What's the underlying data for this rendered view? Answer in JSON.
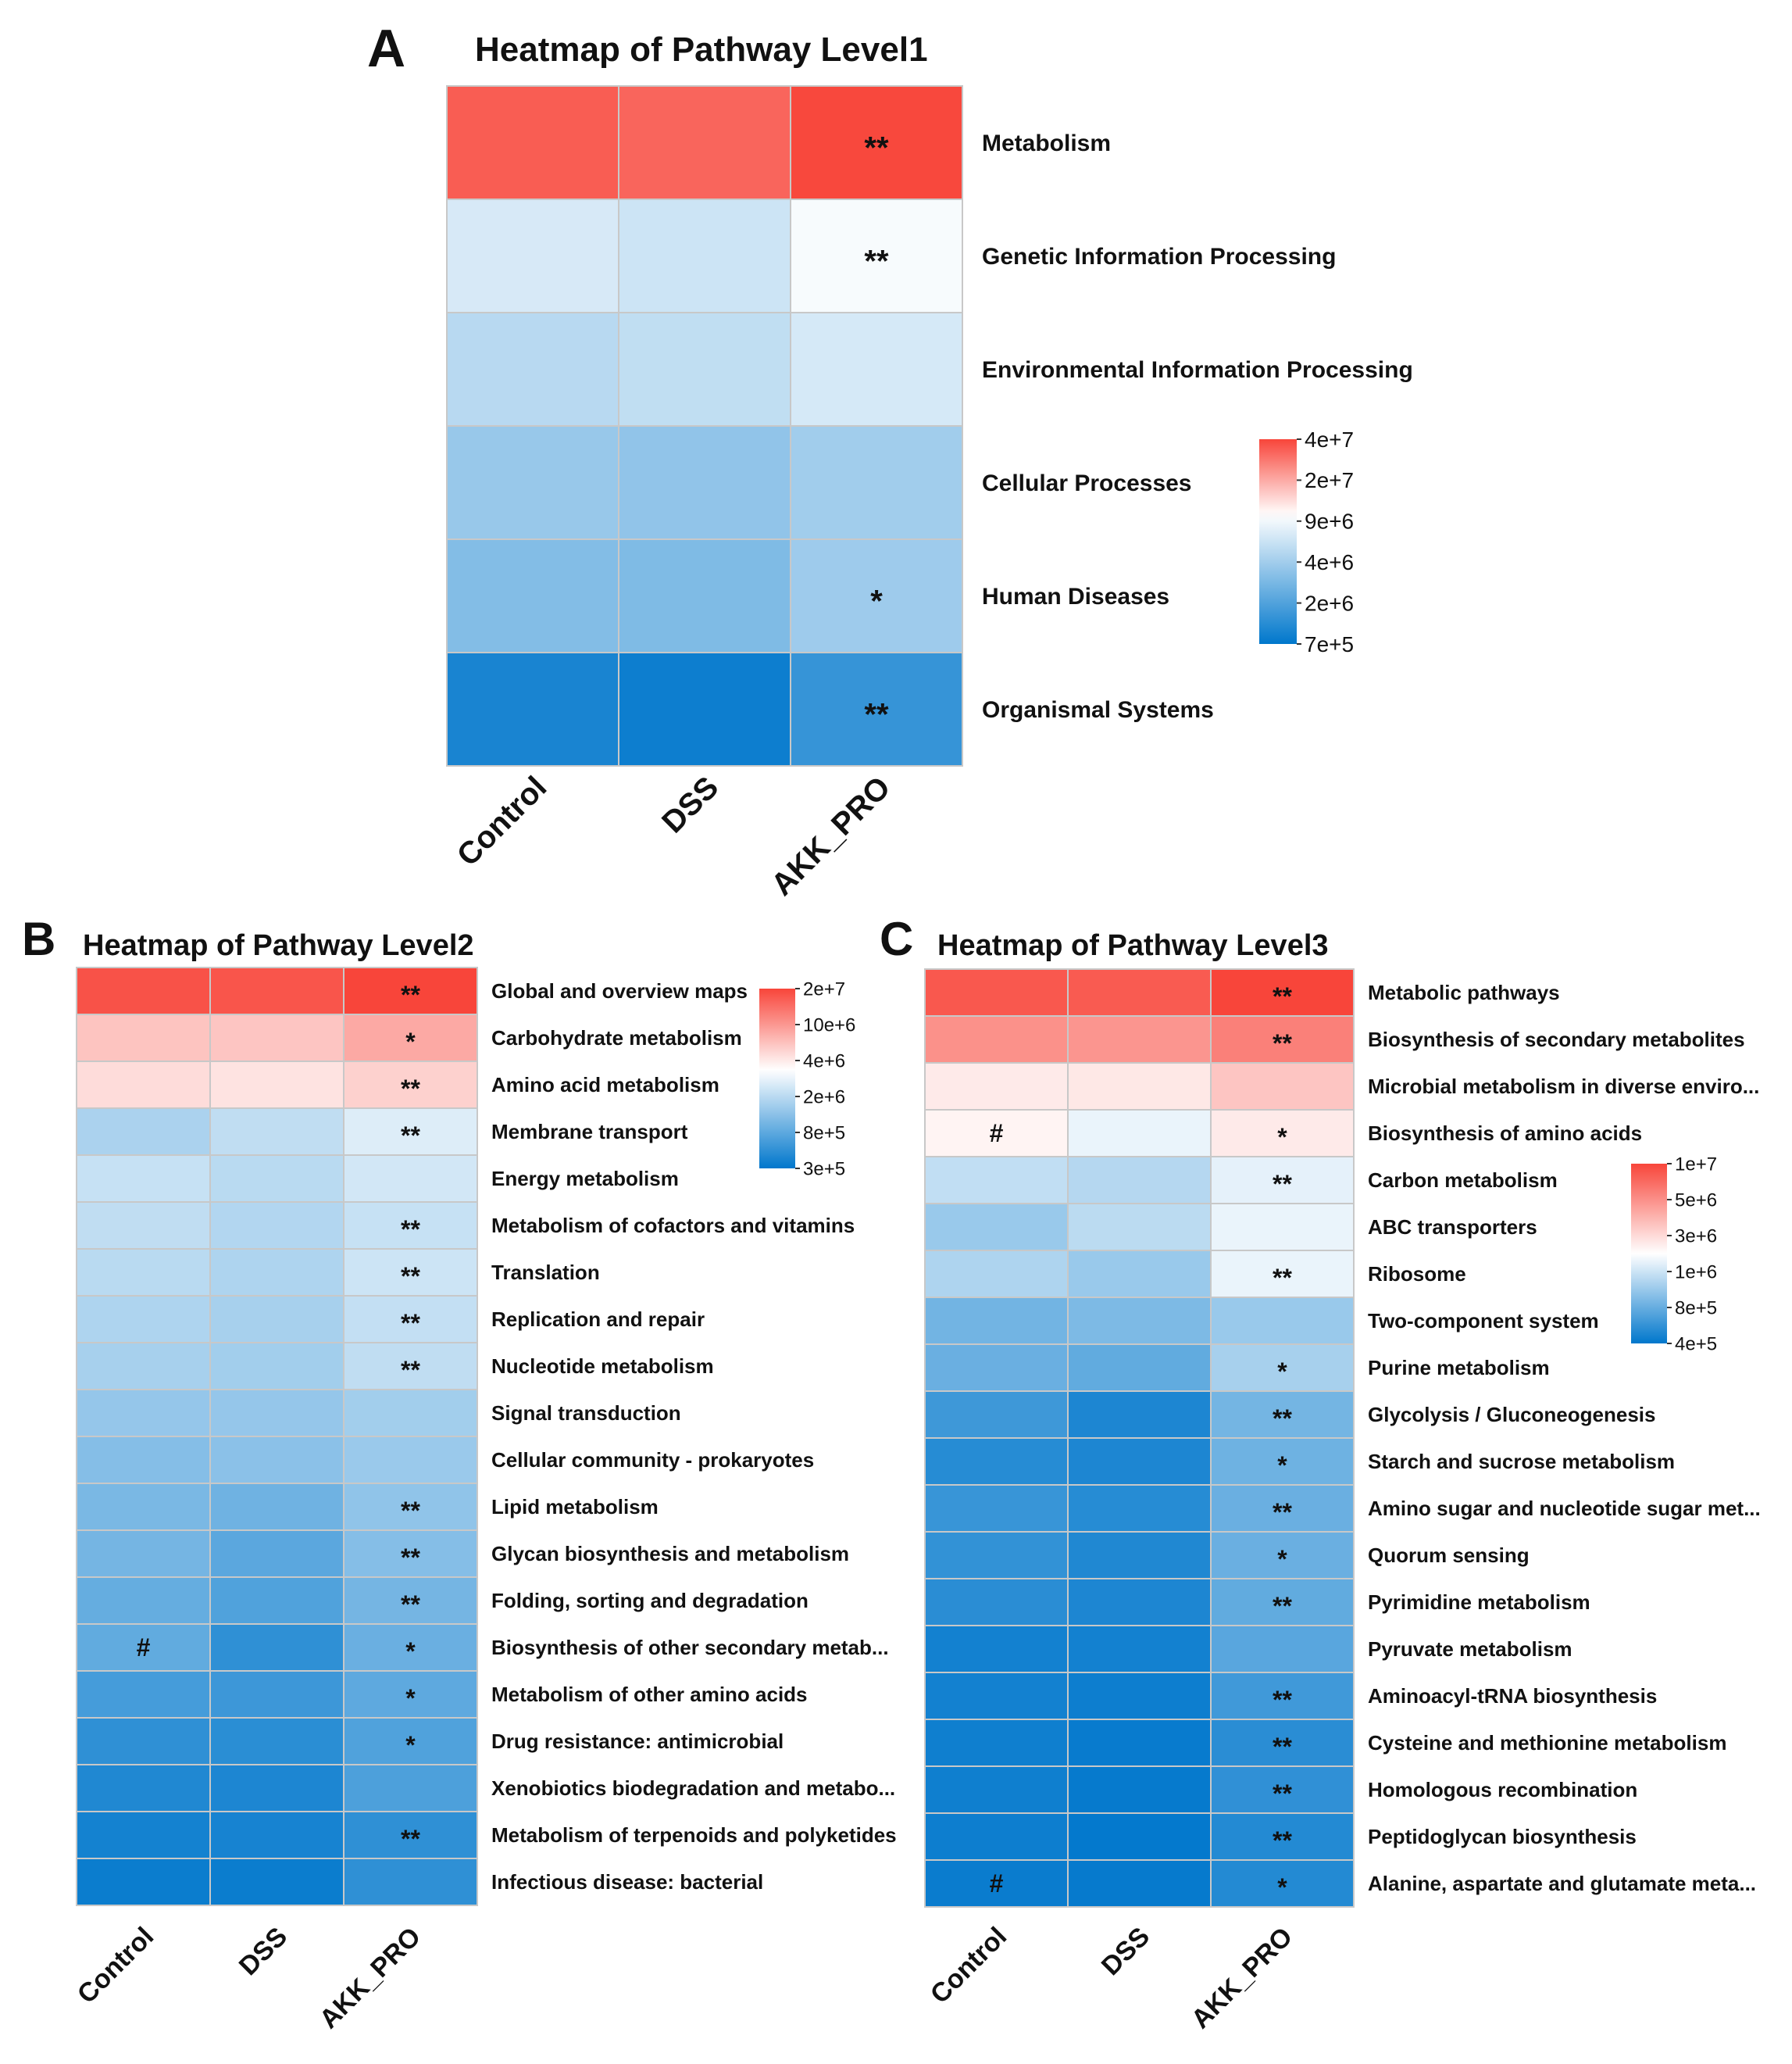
{
  "colors": {
    "high": "#f8453a",
    "mid": "#ffffff",
    "low": "#0077cc",
    "grid": "#c8c8c8"
  },
  "chart_data": [
    {
      "panel": "A",
      "type": "heatmap",
      "title": "Heatmap of Pathway Level1",
      "columns": [
        "Control",
        "DSS",
        "AKK_PRO"
      ],
      "rows": [
        "Metabolism",
        "Genetic Information Processing",
        "Environmental Information Processing",
        "Cellular Processes",
        "Human Diseases",
        "Organismal Systems"
      ],
      "values": [
        [
          33000000.0,
          31000000.0,
          39000000.0
        ],
        [
          6000000.0,
          5400000.0,
          8300000.0
        ],
        [
          4400000.0,
          4800000.0,
          5900000.0
        ],
        [
          3200000.0,
          3000000.0,
          3500000.0
        ],
        [
          2600000.0,
          2500000.0,
          3400000.0
        ],
        [
          900000.0,
          800000.0,
          1200000.0
        ]
      ],
      "marks": [
        [
          "",
          "",
          "**"
        ],
        [
          "",
          "",
          "**"
        ],
        [
          "",
          "",
          ""
        ],
        [
          "",
          "",
          ""
        ],
        [
          "",
          "",
          "*"
        ],
        [
          "",
          "",
          "**"
        ]
      ],
      "legend": {
        "ticks": [
          "4e+7",
          "2e+7",
          "9e+6",
          "4e+6",
          "2e+6",
          "7e+5"
        ],
        "min": 700000.0,
        "max": 40000000.0,
        "mid": 9000000.0
      }
    },
    {
      "panel": "B",
      "type": "heatmap",
      "title": "Heatmap of Pathway Level2",
      "columns": [
        "Control",
        "DSS",
        "AKK_PRO"
      ],
      "rows": [
        "Global and overview maps",
        "Carbohydrate metabolism",
        "Amino acid metabolism",
        "Membrane transport",
        "Energy metabolism",
        "Metabolism of cofactors and vitamins",
        "Translation",
        "Replication and repair",
        "Nucleotide metabolism",
        "Signal transduction",
        "Cellular community - prokaryotes",
        "Lipid metabolism",
        "Glycan biosynthesis and metabolism",
        "Folding, sorting and degradation",
        "Biosynthesis of other secondary metab...",
        "Metabolism of other amino acids",
        "Drug resistance: antimicrobial",
        "Xenobiotics biodegradation and metabo...",
        "Metabolism of terpenoids and polyketides",
        "Infectious disease: bacterial"
      ],
      "values": [
        [
          17500000.0,
          17000000.0,
          20000000.0
        ],
        [
          5500000.0,
          5400000.0,
          7200000.0
        ],
        [
          4300000.0,
          4000000.0,
          4800000.0
        ],
        [
          1400000.0,
          1700000.0,
          2200000.0
        ],
        [
          1800000.0,
          1600000.0,
          2000000.0
        ],
        [
          1700000.0,
          1500000.0,
          1800000.0
        ],
        [
          1600000.0,
          1450000.0,
          1900000.0
        ],
        [
          1450000.0,
          1350000.0,
          1750000.0
        ],
        [
          1350000.0,
          1300000.0,
          1700000.0
        ],
        [
          1150000.0,
          1150000.0,
          1300000.0
        ],
        [
          1000000.0,
          1050000.0,
          1200000.0
        ],
        [
          900000.0,
          820000.0,
          1100000.0
        ],
        [
          860000.0,
          680000.0,
          1000000.0
        ],
        [
          750000.0,
          620000.0,
          860000.0
        ],
        [
          720000.0,
          460000.0,
          780000.0
        ],
        [
          560000.0,
          520000.0,
          700000.0
        ],
        [
          460000.0,
          440000.0,
          620000.0
        ],
        [
          400000.0,
          390000.0,
          600000.0
        ],
        [
          360000.0,
          370000.0,
          460000.0
        ],
        [
          330000.0,
          330000.0,
          460000.0
        ]
      ],
      "marks": [
        [
          "",
          "",
          "**"
        ],
        [
          "",
          "",
          "*"
        ],
        [
          "",
          "",
          "**"
        ],
        [
          "",
          "",
          "**"
        ],
        [
          "",
          "",
          ""
        ],
        [
          "",
          "",
          "**"
        ],
        [
          "",
          "",
          "**"
        ],
        [
          "",
          "",
          "**"
        ],
        [
          "",
          "",
          "**"
        ],
        [
          "",
          "",
          ""
        ],
        [
          "",
          "",
          ""
        ],
        [
          "",
          "",
          "**"
        ],
        [
          "",
          "",
          "**"
        ],
        [
          "",
          "",
          "**"
        ],
        [
          "#",
          "",
          "*"
        ],
        [
          "",
          "",
          "*"
        ],
        [
          "",
          "",
          "*"
        ],
        [
          "",
          "",
          ""
        ],
        [
          "",
          "",
          "**"
        ],
        [
          "",
          "",
          ""
        ]
      ],
      "legend": {
        "ticks": [
          "2e+7",
          "10e+6",
          "4e+6",
          "2e+6",
          "8e+5",
          "3e+5"
        ],
        "min": 300000.0,
        "max": 20000000.0,
        "mid": 3000000.0
      }
    },
    {
      "panel": "C",
      "type": "heatmap",
      "title": "Heatmap of Pathway Level3",
      "columns": [
        "Control",
        "DSS",
        "AKK_PRO"
      ],
      "rows": [
        "Metabolic pathways",
        "Biosynthesis of secondary metabolites",
        "Microbial metabolism in diverse enviro...",
        "Biosynthesis of amino acids",
        "Carbon metabolism",
        "ABC transporters",
        "Ribosome",
        "Two-component system",
        "Purine metabolism",
        "Glycolysis / Gluconeogenesis",
        "Starch and sucrose metabolism",
        "Amino sugar and nucleotide sugar met...",
        "Quorum sensing",
        "Pyrimidine metabolism",
        "Pyruvate metabolism",
        "Aminoacyl-tRNA biosynthesis",
        "Cysteine and methionine metabolism",
        "Homologous recombination",
        "Peptidoglycan biosynthesis",
        "Alanine, aspartate and glutamate meta..."
      ],
      "values": [
        [
          8500000.0,
          8300000.0,
          10000000.0
        ],
        [
          5200000.0,
          5000000.0,
          6000000.0
        ],
        [
          2400000.0,
          2450000.0,
          3300000.0
        ],
        [
          2200000.0,
          1750000.0,
          2400000.0
        ],
        [
          1350000.0,
          1250000.0,
          1700000.0
        ],
        [
          1050000.0,
          1300000.0,
          1750000.0
        ],
        [
          1200000.0,
          1050000.0,
          1750000.0
        ],
        [
          820000.0,
          880000.0,
          1050000.0
        ],
        [
          780000.0,
          740000.0,
          1150000.0
        ],
        [
          590000.0,
          480000.0,
          830000.0
        ],
        [
          510000.0,
          480000.0,
          800000.0
        ],
        [
          570000.0,
          510000.0,
          780000.0
        ],
        [
          550000.0,
          490000.0,
          780000.0
        ],
        [
          520000.0,
          480000.0,
          740000.0
        ],
        [
          450000.0,
          450000.0,
          700000.0
        ],
        [
          450000.0,
          435000.0,
          600000.0
        ],
        [
          440000.0,
          420000.0,
          520000.0
        ],
        [
          440000.0,
          415000.0,
          540000.0
        ],
        [
          435000.0,
          410000.0,
          500000.0
        ],
        [
          425000.0,
          415000.0,
          500000.0
        ]
      ],
      "marks": [
        [
          "",
          "",
          "**"
        ],
        [
          "",
          "",
          "**"
        ],
        [
          "",
          "",
          ""
        ],
        [
          "#",
          "",
          "*"
        ],
        [
          "",
          "",
          "**"
        ],
        [
          "",
          "",
          ""
        ],
        [
          "",
          "",
          "**"
        ],
        [
          "",
          "",
          ""
        ],
        [
          "",
          "",
          "*"
        ],
        [
          "",
          "",
          "**"
        ],
        [
          "",
          "",
          "*"
        ],
        [
          "",
          "",
          "**"
        ],
        [
          "",
          "",
          "*"
        ],
        [
          "",
          "",
          "**"
        ],
        [
          "",
          "",
          ""
        ],
        [
          "",
          "",
          "**"
        ],
        [
          "",
          "",
          "**"
        ],
        [
          "",
          "",
          "**"
        ],
        [
          "",
          "",
          "**"
        ],
        [
          "#",
          "",
          "*"
        ]
      ],
      "legend": {
        "ticks": [
          "1e+7",
          "5e+6",
          "3e+6",
          "1e+6",
          "8e+5",
          "4e+5"
        ],
        "min": 400000.0,
        "max": 10000000.0,
        "mid": 2000000.0
      }
    }
  ]
}
